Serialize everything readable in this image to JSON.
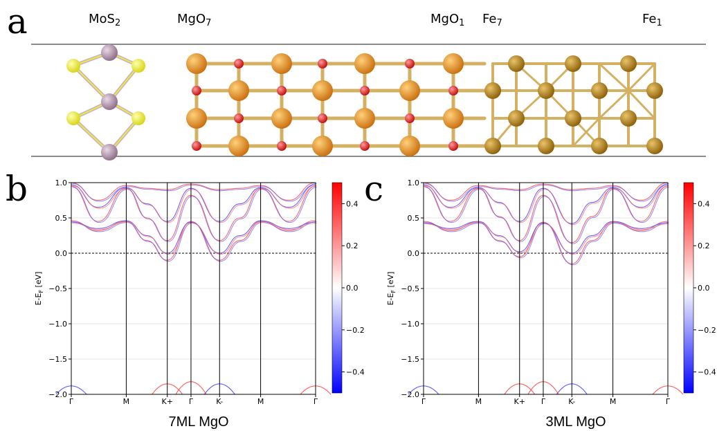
{
  "panel_a": {
    "letter": "a",
    "labels": {
      "mos2": {
        "main": "MoS",
        "sub": "2"
      },
      "mgo7": {
        "main": "MgO",
        "sub": "7"
      },
      "mgo1": {
        "main": "MgO",
        "sub": "1"
      },
      "fe7": {
        "main": "Fe",
        "sub": "7"
      },
      "fe1": {
        "main": "Fe",
        "sub": "1"
      }
    },
    "colors": {
      "Mo": "#a8839f",
      "S": "#f2f22a",
      "Mg": "#e08a22",
      "O": "#e01818",
      "Fe": "#b6820e",
      "bond": "#d4b062"
    }
  },
  "chart_data": [
    {
      "type": "line",
      "panel": "b",
      "caption": "7ML MgO",
      "ylabel": {
        "main": "E-E",
        "sub": "F",
        "unit": " [eV]"
      },
      "ylim": [
        -2.0,
        1.0
      ],
      "yticks": [
        "−2.0",
        "−1.5",
        "−1.0",
        "−0.5",
        "0.0",
        "0.5",
        "1.0"
      ],
      "kpath": [
        "Γ",
        "M",
        "K+",
        "Γ",
        "K-",
        "M",
        "Γ"
      ],
      "colorbar": {
        "range": [
          -0.5,
          0.5
        ],
        "ticks": [
          "0.4",
          "0.2",
          "0.0",
          "−0.2",
          "−0.4"
        ],
        "colormap": "bwr"
      },
      "fermi_level": 0.0,
      "band_minima": {
        "K+": -0.1,
        "K-": -0.1
      },
      "series": [
        {
          "values": [
            0.46,
            0.32,
            0.45,
            0.18,
            -0.1,
            0.45,
            -0.1,
            0.18,
            0.45,
            0.32,
            0.46
          ]
        },
        {
          "values": [
            0.44,
            0.35,
            0.46,
            0.25,
            0.0,
            0.44,
            0.0,
            0.25,
            0.46,
            0.35,
            0.44
          ]
        },
        {
          "values": [
            0.95,
            0.45,
            0.92,
            0.5,
            0.18,
            0.82,
            0.18,
            0.5,
            0.92,
            0.45,
            0.95
          ]
        },
        {
          "values": [
            0.97,
            0.65,
            0.93,
            0.7,
            0.45,
            0.92,
            0.45,
            0.7,
            0.93,
            0.65,
            0.97
          ]
        },
        {
          "values": [
            1.0,
            0.75,
            0.96,
            0.92,
            0.9,
            0.98,
            0.9,
            0.92,
            0.96,
            0.75,
            1.0
          ]
        }
      ]
    },
    {
      "type": "line",
      "panel": "c",
      "caption": "3ML MgO",
      "ylabel": {
        "main": "E-E",
        "sub": "F",
        "unit": " [eV]"
      },
      "ylim": [
        -2.0,
        1.0
      ],
      "yticks": [
        "−2.0",
        "−1.5",
        "−1.0",
        "−0.5",
        "0.0",
        "0.5",
        "1.0"
      ],
      "kpath": [
        "Γ",
        "M",
        "K+",
        "Γ",
        "K-",
        "M",
        "Γ"
      ],
      "colorbar": {
        "range": [
          -0.5,
          0.5
        ],
        "ticks": [
          "0.4",
          "0.2",
          "0.0",
          "−0.2",
          "−0.4"
        ],
        "colormap": "bwr"
      },
      "fermi_level": 0.0,
      "band_minima": {
        "K+": -0.05,
        "K-": -0.15
      },
      "series": [
        {
          "values": [
            0.45,
            0.32,
            0.44,
            0.18,
            -0.05,
            0.44,
            -0.15,
            0.18,
            0.44,
            0.32,
            0.45
          ]
        },
        {
          "values": [
            0.43,
            0.35,
            0.45,
            0.25,
            0.02,
            0.43,
            0.0,
            0.25,
            0.45,
            0.35,
            0.43
          ]
        },
        {
          "values": [
            0.95,
            0.45,
            0.92,
            0.52,
            0.18,
            0.82,
            0.15,
            0.52,
            0.92,
            0.45,
            0.95
          ]
        },
        {
          "values": [
            0.97,
            0.65,
            0.93,
            0.72,
            0.45,
            0.92,
            0.42,
            0.72,
            0.93,
            0.65,
            0.97
          ]
        },
        {
          "values": [
            1.0,
            0.75,
            0.96,
            0.92,
            0.9,
            0.98,
            0.9,
            0.92,
            0.96,
            0.75,
            1.0
          ]
        }
      ]
    }
  ]
}
